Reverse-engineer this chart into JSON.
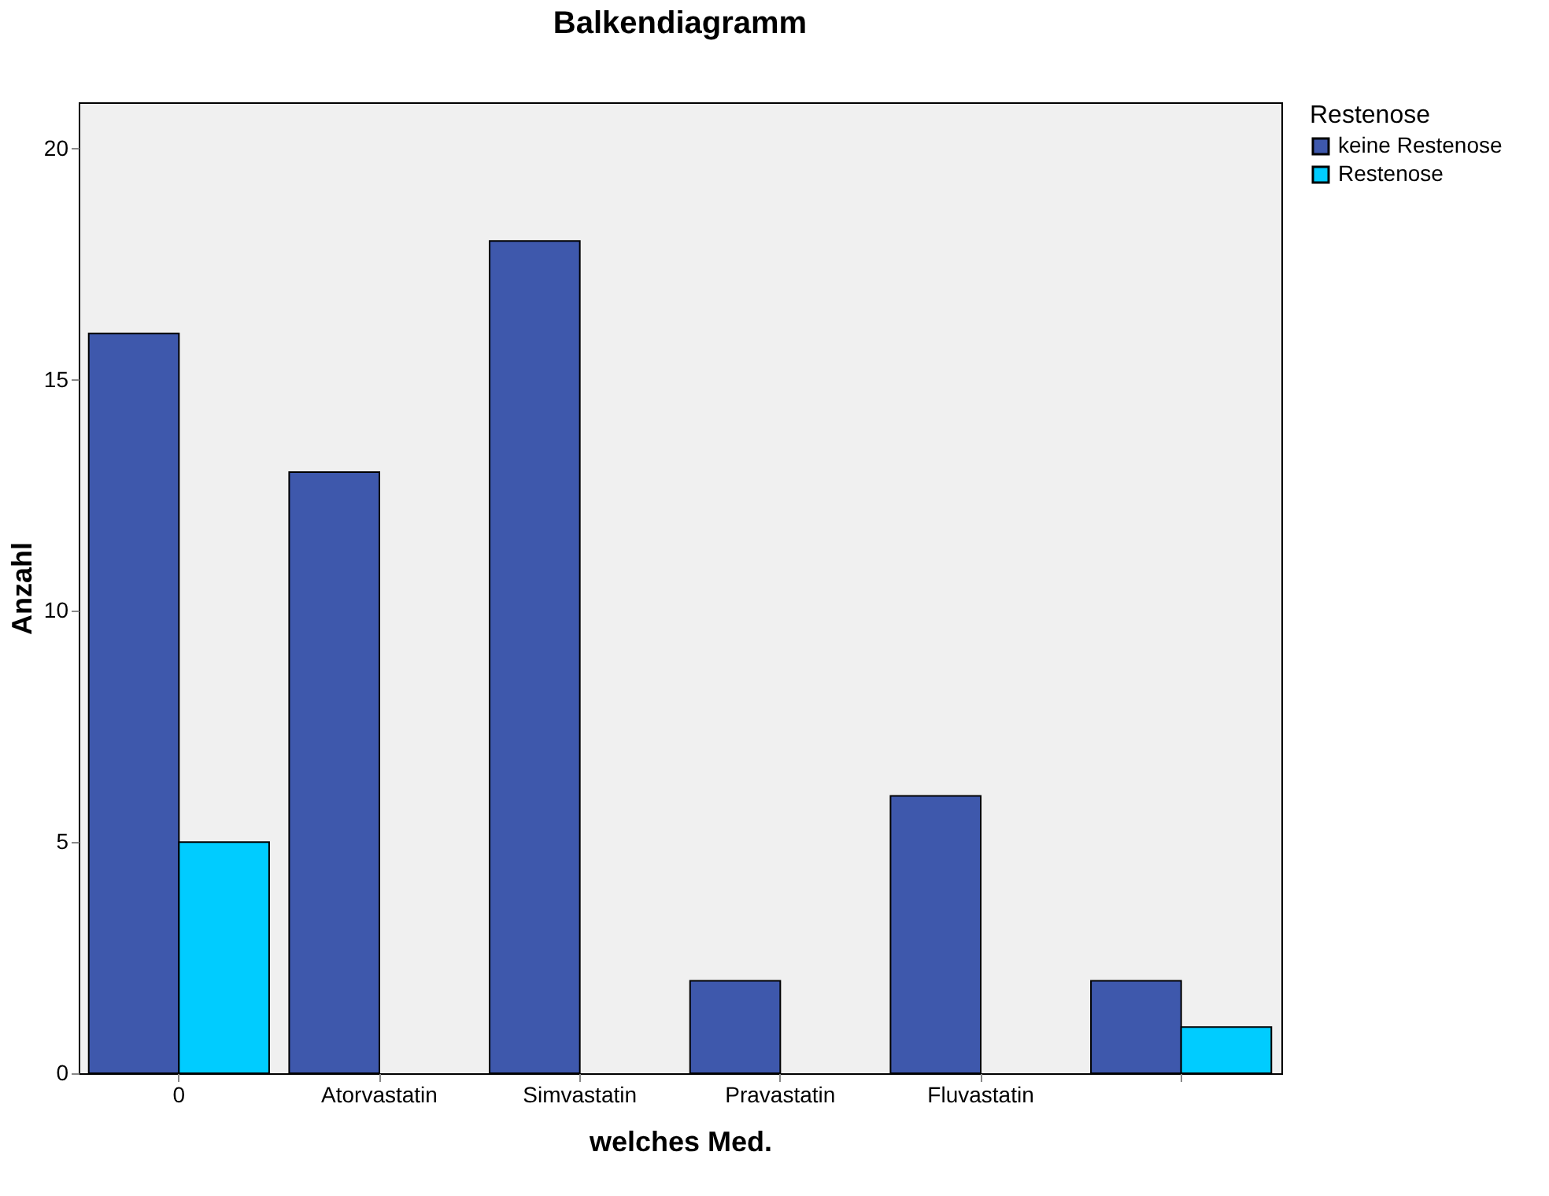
{
  "chart_data": {
    "type": "bar",
    "title": "Balkendiagramm",
    "xlabel": "welches Med.",
    "ylabel": "Anzahl",
    "legend_title": "Restenose",
    "categories": [
      "0",
      "Atorvastatin",
      "Simvastatin",
      "Pravastatin",
      "Fluvastatin",
      null
    ],
    "series": [
      {
        "name": "keine Restenose",
        "color": "#3e58ac",
        "values": [
          16,
          13,
          18,
          2,
          6,
          2
        ]
      },
      {
        "name": "Restenose",
        "color": "#00ccff",
        "values": [
          5,
          null,
          null,
          null,
          null,
          1
        ]
      }
    ],
    "ylim": [
      0,
      21
    ],
    "yticks": [
      0,
      5,
      10,
      15,
      20
    ],
    "legend": "right"
  }
}
